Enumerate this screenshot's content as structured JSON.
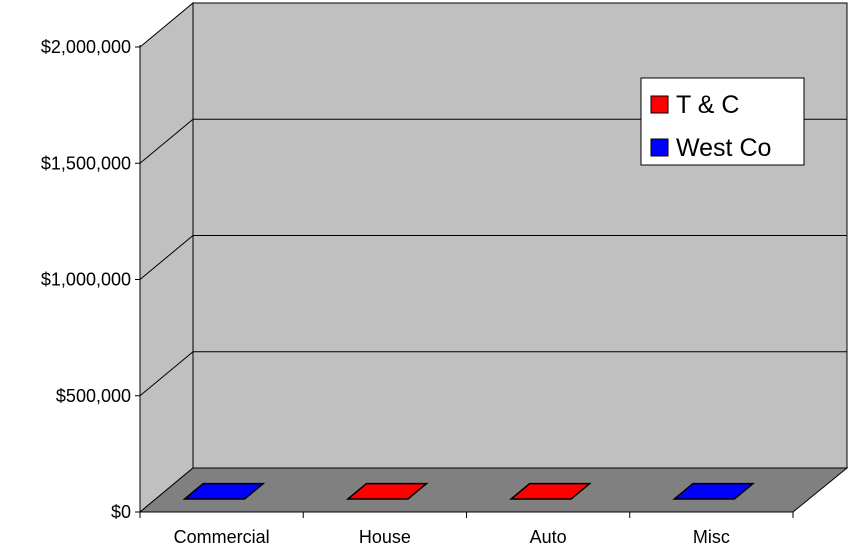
{
  "chart_data": {
    "type": "bar",
    "categories": [
      "Commercial",
      "House",
      "Auto",
      "Misc"
    ],
    "series": [
      {
        "name": "T & C",
        "color": "#ff0000",
        "values": [
          0,
          0,
          0,
          0
        ]
      },
      {
        "name": "West Co",
        "color": "#0000ff",
        "values": [
          0,
          0,
          0,
          0
        ]
      }
    ],
    "bar_colors": [
      "#0000ff",
      "#ff0000",
      "#ff0000",
      "#0000ff"
    ],
    "y_ticks": [
      {
        "value": 0,
        "label": "$0"
      },
      {
        "value": 500000,
        "label": "$500,000"
      },
      {
        "value": 1000000,
        "label": "$1,000,000"
      },
      {
        "value": 1500000,
        "label": "$1,500,000"
      },
      {
        "value": 2000000,
        "label": "$2,000,000"
      }
    ],
    "ylim": [
      0,
      2000000
    ],
    "title": "",
    "xlabel": "",
    "ylabel": "",
    "grid": true,
    "legend_position": "top-right",
    "three_d": true,
    "colors": {
      "wall": "#c0c0c0",
      "floor": "#808080",
      "gridline": "#000000"
    }
  }
}
